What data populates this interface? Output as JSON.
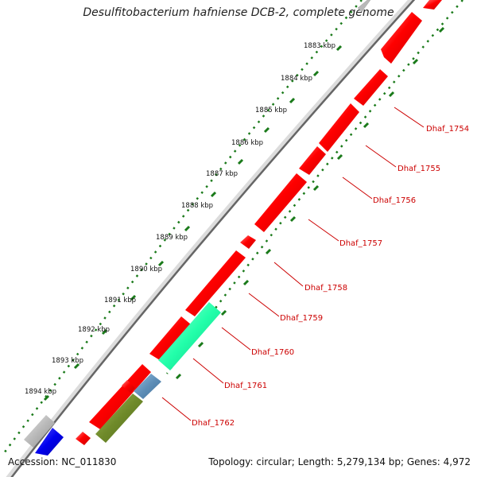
{
  "title": "Desulfitobacterium hafniense DCB-2, complete genome",
  "footer": {
    "accession": "Accession: NC_011830",
    "topology": "Topology: circular; Length: 5,279,134 bp; Genes: 4,972"
  },
  "colors": {
    "gene": "#ff0000",
    "gene_label": "#cc0000",
    "tick": "#1a7a1a",
    "backbone": "#555555",
    "teal": "#22ffaa",
    "steelblue": "#5f8fb8",
    "olive": "#6f8a2a",
    "blue": "#0000ee",
    "gray": "#b8b8b8"
  },
  "scale_labels": [
    "1883 kbp",
    "1884 kbp",
    "1885 kbp",
    "1886 kbp",
    "1887 kbp",
    "1888 kbp",
    "1889 kbp",
    "1890 kbp",
    "1891 kbp",
    "1892 kbp",
    "1893 kbp",
    "1894 kbp"
  ],
  "gene_labels": [
    "Dhaf_1754",
    "Dhaf_1755",
    "Dhaf_1756",
    "Dhaf_1757",
    "Dhaf_1758",
    "Dhaf_1759",
    "Dhaf_1760",
    "Dhaf_1761",
    "Dhaf_1762"
  ]
}
